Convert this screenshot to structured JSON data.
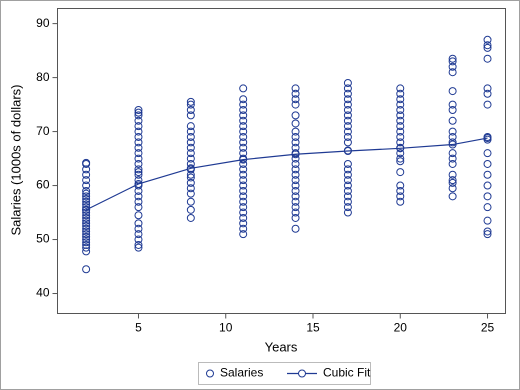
{
  "chart_data": {
    "type": "scatter",
    "x_label": "Years",
    "y_label": "Salaries (1000s of dollars)",
    "xlim": [
      0.36,
      26.03
    ],
    "ylim": [
      36.3,
      92.8
    ],
    "xticks": [
      5,
      10,
      15,
      20,
      25
    ],
    "yticks": [
      40,
      50,
      60,
      70,
      80,
      90
    ],
    "legend": "bottom",
    "series": [
      {
        "name": "Salaries",
        "color": "#1f3a93",
        "style": "markers",
        "groups": [
          {
            "x": 2,
            "values": [
              44.5,
              47.8,
              48.5,
              49,
              49.5,
              50,
              50.5,
              51,
              51.5,
              52,
              52.5,
              53,
              53.5,
              54,
              54.5,
              55,
              55.5,
              56,
              56.5,
              57,
              57.5,
              58,
              58.5,
              59,
              60,
              61,
              62,
              63,
              64,
              64.2
            ]
          },
          {
            "x": 5,
            "values": [
              48.5,
              49,
              50,
              51,
              52,
              53,
              54.5,
              56,
              57,
              58,
              59,
              60,
              61,
              62,
              62.5,
              63,
              64,
              65,
              66,
              67,
              68,
              69,
              70,
              71,
              72,
              73,
              73.5,
              74
            ]
          },
          {
            "x": 8,
            "values": [
              54,
              55.5,
              57,
              58.5,
              59.5,
              60.5,
              61.5,
              62,
              63,
              64,
              65,
              66,
              67,
              68,
              69,
              70,
              71,
              73,
              74,
              75,
              75.5
            ]
          },
          {
            "x": 11,
            "values": [
              51,
              52,
              53,
              54,
              55,
              56,
              57,
              58,
              59,
              60,
              61,
              62,
              63,
              64,
              65,
              66,
              67,
              68,
              69,
              70,
              71,
              72,
              73,
              74,
              75,
              76,
              78
            ]
          },
          {
            "x": 14,
            "values": [
              52,
              54,
              55,
              56,
              57,
              58,
              59,
              60,
              61,
              62,
              63,
              64,
              65,
              66,
              67,
              68,
              69,
              70,
              71.5,
              73,
              75,
              76,
              77,
              78
            ]
          },
          {
            "x": 17,
            "values": [
              55,
              56,
              57,
              58,
              59,
              60,
              61,
              62,
              63,
              64,
              66.5,
              68,
              69,
              70,
              71,
              72,
              73,
              74,
              75,
              76,
              77,
              78,
              79
            ]
          },
          {
            "x": 20,
            "values": [
              57,
              58,
              59,
              60,
              62.5,
              64.5,
              65,
              66,
              67,
              68,
              69,
              70,
              71,
              72,
              73,
              74,
              75,
              76,
              77,
              78
            ]
          },
          {
            "x": 23,
            "values": [
              58,
              59.5,
              60.5,
              61,
              62,
              64,
              65,
              66,
              68,
              69,
              70,
              72,
              74,
              75,
              77.5,
              81,
              82,
              83,
              83.5
            ]
          },
          {
            "x": 25,
            "values": [
              51,
              51.5,
              53.5,
              56,
              58,
              60,
              62,
              64,
              66,
              68.5,
              69,
              75,
              77,
              78,
              83.5,
              85.5,
              86,
              87
            ]
          }
        ]
      },
      {
        "name": "Cubic Fit",
        "color": "#1f3a93",
        "style": "line-markers",
        "x": [
          2,
          5,
          8,
          11,
          14,
          17,
          20,
          23,
          25
        ],
        "values": [
          55.5,
          60.3,
          63.2,
          64.8,
          65.8,
          66.4,
          66.9,
          67.6,
          68.8
        ]
      }
    ]
  }
}
